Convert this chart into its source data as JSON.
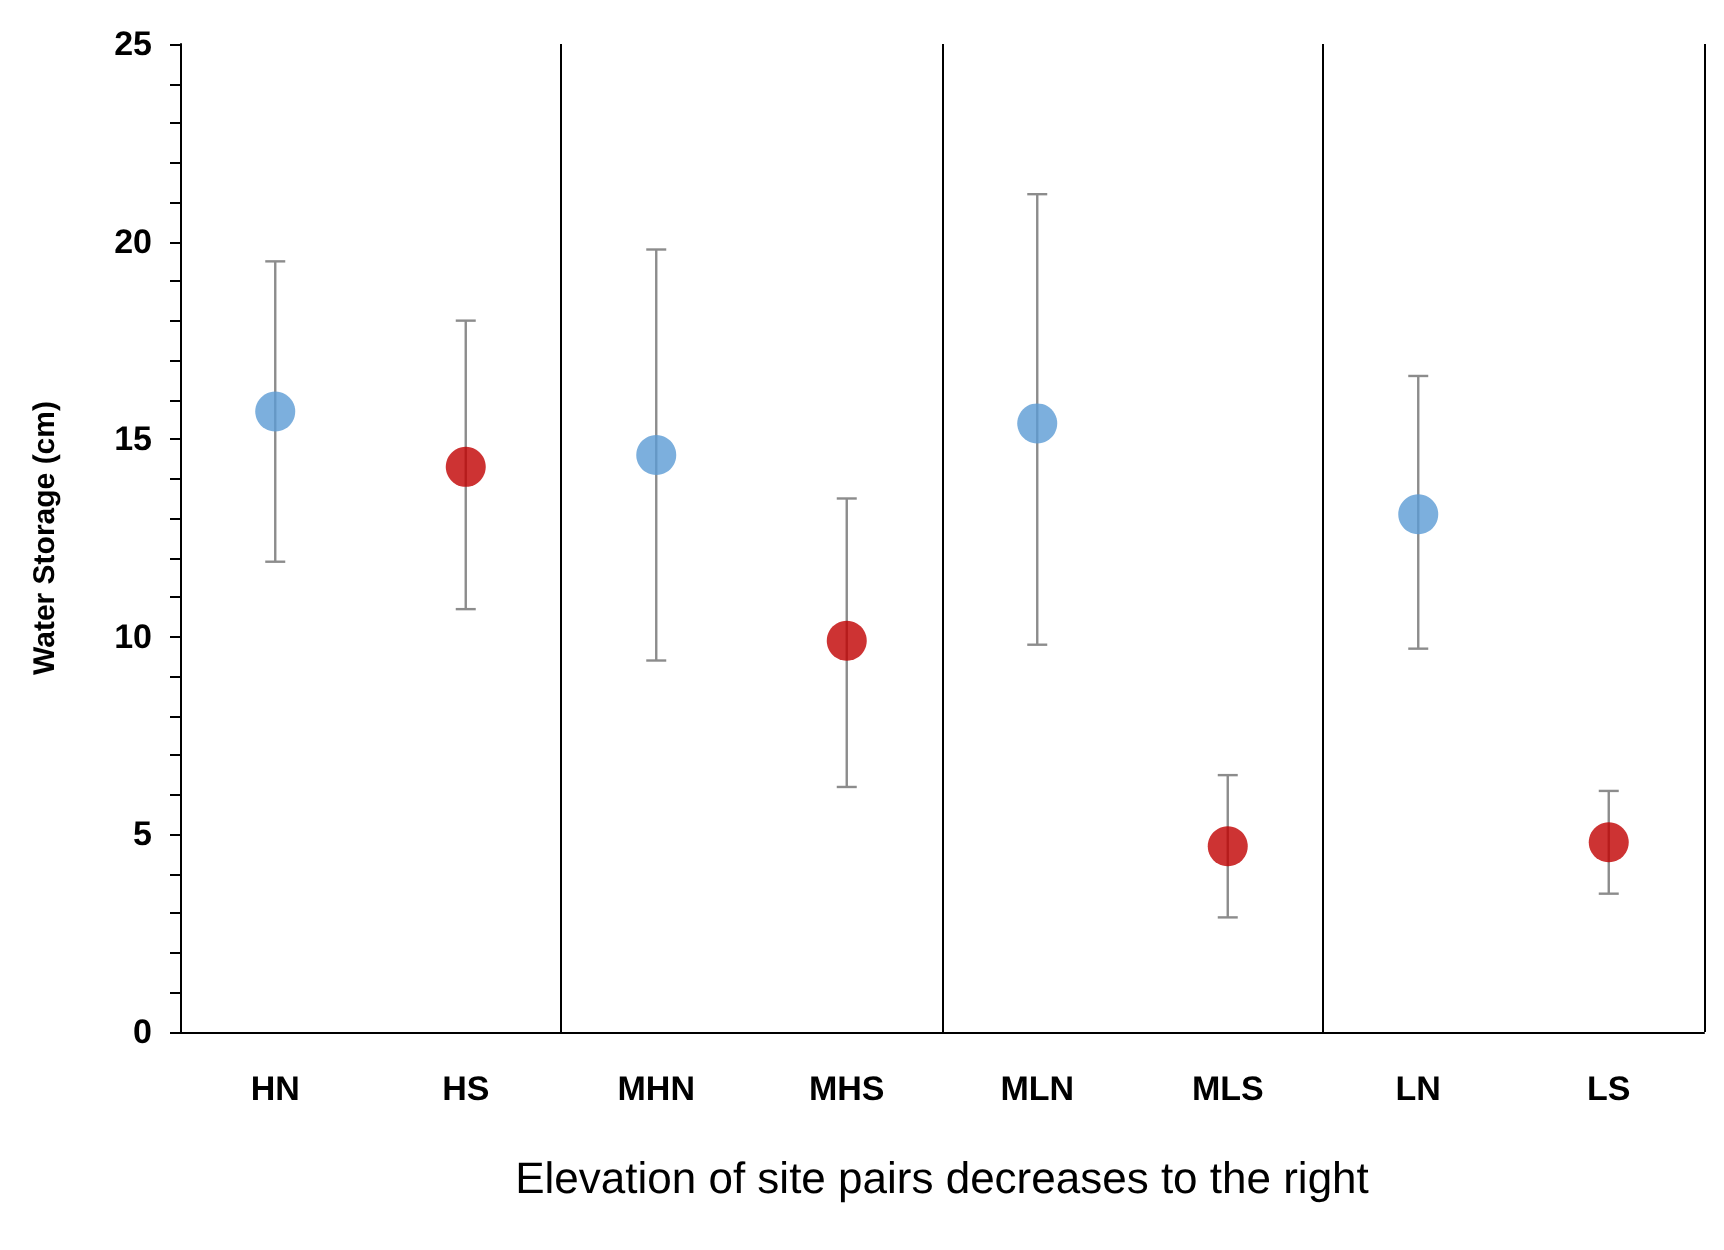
{
  "chart_data": {
    "type": "scatter",
    "xlabel": "Elevation of site pairs decreases to the right",
    "ylabel": "Water Storage (cm)",
    "categories": [
      "HN",
      "HS",
      "MHN",
      "MHS",
      "MLN",
      "MLS",
      "LN",
      "LS"
    ],
    "values": [
      15.7,
      14.3,
      14.6,
      9.9,
      15.4,
      4.7,
      13.1,
      4.8
    ],
    "colors": [
      "#5b9bd5",
      "#c00000",
      "#5b9bd5",
      "#c00000",
      "#5b9bd5",
      "#c00000",
      "#5b9bd5",
      "#c00000"
    ],
    "errors": [
      [
        11.9,
        19.5
      ],
      [
        10.7,
        18.0
      ],
      [
        9.4,
        19.8
      ],
      [
        6.2,
        13.5
      ],
      [
        9.8,
        21.2
      ],
      [
        2.9,
        6.5
      ],
      [
        9.7,
        16.6
      ],
      [
        3.5,
        6.1
      ]
    ],
    "ylim": [
      0,
      25
    ],
    "yticks": [
      0,
      {
        "value": 1,
        "label": null
      },
      {
        "value": 2,
        "label": null
      },
      {
        "value": 3,
        "label": null
      },
      {
        "value": 4,
        "label": null
      },
      5,
      {
        "value": 6,
        "label": null
      },
      {
        "value": 7,
        "label": null
      },
      {
        "value": 8,
        "label": null
      },
      {
        "value": 9,
        "label": null
      },
      10,
      {
        "value": 11,
        "label": null
      },
      {
        "value": 12,
        "label": null
      },
      {
        "value": 13,
        "label": null
      },
      {
        "value": 14,
        "label": null
      },
      15,
      {
        "value": 16,
        "label": null
      },
      {
        "value": 17,
        "label": null
      },
      {
        "value": 18,
        "label": null
      },
      {
        "value": 19,
        "label": null
      },
      20,
      {
        "value": 21,
        "label": null
      },
      {
        "value": 22,
        "label": null
      },
      {
        "value": 23,
        "label": null
      },
      {
        "value": 24,
        "label": null
      },
      25
    ],
    "grid": "x",
    "marker": "circle"
  }
}
